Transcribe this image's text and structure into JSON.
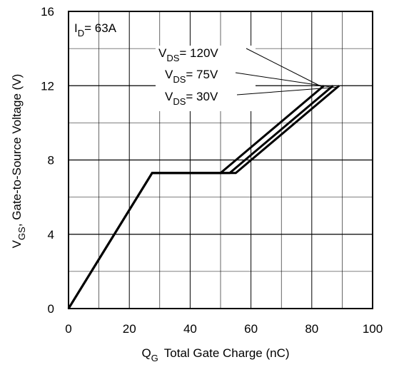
{
  "chart_data": {
    "type": "line",
    "xlabel": {
      "main": "Q",
      "sub": "G",
      "rest": "Total Gate Charge (nC)"
    },
    "ylabel": {
      "main": "V",
      "sub": "GS",
      "rest": ", Gate-to-Source Voltage (V)"
    },
    "xlim": [
      0,
      100
    ],
    "ylim": [
      0,
      16
    ],
    "xticks": [
      0,
      20,
      40,
      60,
      80,
      100
    ],
    "yticks": [
      0,
      4,
      8,
      12,
      16
    ],
    "grid": true,
    "condition": {
      "main": "I",
      "sub": "D",
      "rest": "= 63A"
    },
    "series": [
      {
        "name": "120V",
        "label": {
          "main": "V",
          "sub": "DS",
          "rest": "= 120V"
        },
        "x": [
          0,
          27.5,
          50,
          84
        ],
        "y": [
          0,
          7.3,
          7.3,
          12
        ]
      },
      {
        "name": "75V",
        "label": {
          "main": "V",
          "sub": "DS",
          "rest": "= 75V"
        },
        "x": [
          0,
          27.5,
          53,
          87
        ],
        "y": [
          0,
          7.3,
          7.3,
          12
        ]
      },
      {
        "name": "30V",
        "label": {
          "main": "V",
          "sub": "DS",
          "rest": "= 30V"
        },
        "x": [
          0,
          27.5,
          55,
          89
        ],
        "y": [
          0,
          7.3,
          7.3,
          12
        ]
      }
    ]
  }
}
